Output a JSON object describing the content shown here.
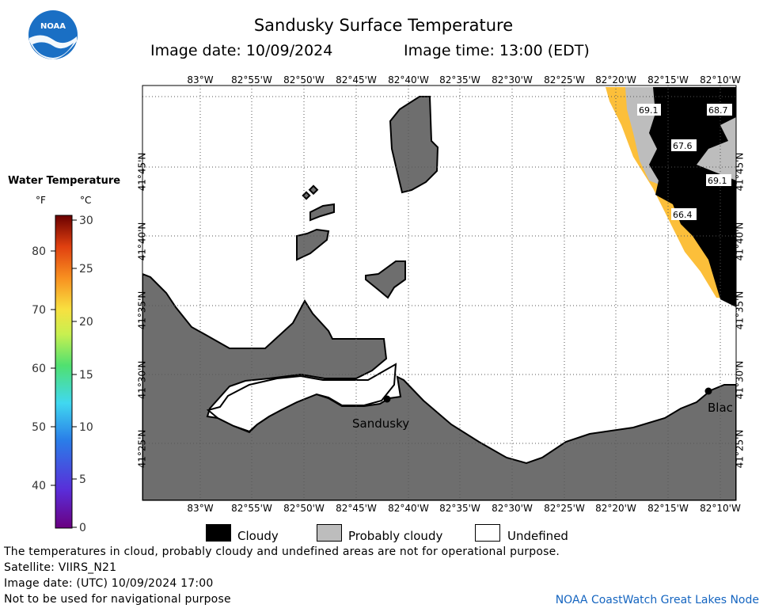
{
  "header": {
    "title": "Sandusky Surface Temperature",
    "image_date": "Image date: 10/09/2024",
    "image_time": "Image time: 13:00 (EDT)",
    "logo_text": "NOAA"
  },
  "colorbar": {
    "title": "Water Temperature",
    "unit_f": "°F",
    "unit_c": "°C",
    "f_ticks": [
      "80",
      "70",
      "60",
      "50",
      "40"
    ],
    "c_ticks": [
      "30",
      "25",
      "20",
      "15",
      "10",
      "5",
      "0"
    ]
  },
  "map": {
    "lon_labels": [
      "83°W",
      "82°55'W",
      "82°50'W",
      "82°45'W",
      "82°40'W",
      "82°35'W",
      "82°30'W",
      "82°25'W",
      "82°20'W",
      "82°15'W",
      "82°10'W"
    ],
    "lat_labels": [
      "41°45'N",
      "41°40'N",
      "41°35'N",
      "41°30'N",
      "41°25'N"
    ],
    "cities": [
      {
        "name": "Sandusky"
      },
      {
        "name": "Blac"
      }
    ],
    "temp_labels": [
      "69.1",
      "68.7",
      "67.6",
      "69.1",
      "66.4"
    ],
    "colors": {
      "land": "#6e6e6e",
      "cloud": "#000000",
      "probably_cloudy": "#bdbdbd",
      "warm_water": "#fcbf3a"
    }
  },
  "key": {
    "cloudy": "Cloudy",
    "probably_cloudy": "Probably cloudy",
    "undefined": "Undefined"
  },
  "footer": {
    "line1": "The temperatures in cloud, probably cloudy and undefined areas are not for operational purpose.",
    "line2": "Satellite: VIIRS_N21",
    "line3": "Image date: (UTC) 10/09/2024  17:00",
    "line4": "Not to be used for navigational purpose",
    "credit": "NOAA CoastWatch Great Lakes Node"
  }
}
